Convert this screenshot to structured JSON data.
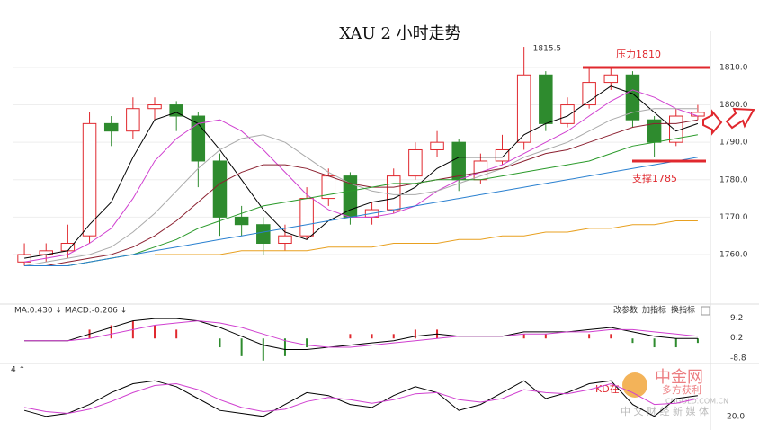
{
  "chart_data": {
    "type": "candlestick",
    "title": "XAU 2 小时走势",
    "ohlc": [
      [
        1758,
        1763,
        1757,
        1760
      ],
      [
        1760,
        1763,
        1758,
        1761
      ],
      [
        1761,
        1768,
        1759,
        1763
      ],
      [
        1765,
        1798,
        1763,
        1795
      ],
      [
        1795,
        1797,
        1789,
        1793
      ],
      [
        1793,
        1802,
        1791,
        1799
      ],
      [
        1799,
        1802,
        1796,
        1800
      ],
      [
        1800,
        1801,
        1793,
        1797
      ],
      [
        1797,
        1798,
        1778,
        1785
      ],
      [
        1785,
        1787,
        1765,
        1770
      ],
      [
        1770,
        1773,
        1765,
        1768
      ],
      [
        1768,
        1770,
        1760,
        1763
      ],
      [
        1763,
        1768,
        1761,
        1765
      ],
      [
        1765,
        1778,
        1764,
        1775
      ],
      [
        1775,
        1783,
        1773,
        1781
      ],
      [
        1781,
        1782,
        1768,
        1770
      ],
      [
        1770,
        1774,
        1768,
        1772
      ],
      [
        1772,
        1783,
        1771,
        1781
      ],
      [
        1781,
        1790,
        1780,
        1788
      ],
      [
        1788,
        1793,
        1786,
        1790
      ],
      [
        1790,
        1791,
        1777,
        1780
      ],
      [
        1780,
        1787,
        1779,
        1785
      ],
      [
        1785,
        1792,
        1784,
        1788
      ],
      [
        1790,
        1815.5,
        1788,
        1808
      ],
      [
        1808,
        1809,
        1793,
        1795
      ],
      [
        1795,
        1802,
        1794,
        1800
      ],
      [
        1800,
        1810,
        1799,
        1806
      ],
      [
        1806,
        1810,
        1804,
        1808
      ],
      [
        1808,
        1809,
        1794,
        1796
      ],
      [
        1796,
        1797,
        1786,
        1790
      ],
      [
        1790,
        1799,
        1789,
        1797
      ],
      [
        1797,
        1800,
        1796,
        1798
      ]
    ],
    "up_color": "#e0282e",
    "down_color": "#2e8b2e",
    "series": [
      {
        "color": "#000000",
        "values": [
          1759,
          1760,
          1761,
          1768,
          1774,
          1786,
          1796,
          1798,
          1795,
          1788,
          1780,
          1772,
          1766,
          1764,
          1769,
          1772,
          1774,
          1775,
          1778,
          1783,
          1786,
          1786,
          1786,
          1792,
          1795,
          1797,
          1801,
          1805,
          1803,
          1798,
          1793,
          1795
        ]
      },
      {
        "color": "#d040d0",
        "values": [
          1758,
          1759,
          1760,
          1763,
          1767,
          1775,
          1785,
          1791,
          1795,
          1796,
          1793,
          1788,
          1782,
          1776,
          1772,
          1770,
          1770,
          1771,
          1773,
          1777,
          1780,
          1782,
          1784,
          1787,
          1790,
          1793,
          1797,
          1801,
          1804,
          1802,
          1799,
          1797
        ]
      },
      {
        "color": "#aaaaaa",
        "values": [
          1757,
          1758,
          1759,
          1760,
          1762,
          1766,
          1771,
          1777,
          1783,
          1788,
          1791,
          1792,
          1790,
          1786,
          1782,
          1779,
          1777,
          1776,
          1776,
          1777,
          1779,
          1781,
          1783,
          1786,
          1788,
          1790,
          1793,
          1796,
          1798,
          1799,
          1799,
          1799
        ]
      },
      {
        "color": "#8b2030",
        "values": [
          1757,
          1757,
          1758,
          1759,
          1760,
          1762,
          1765,
          1769,
          1774,
          1779,
          1782,
          1784,
          1784,
          1783,
          1781,
          1779,
          1778,
          1778,
          1779,
          1780,
          1781,
          1782,
          1783,
          1785,
          1787,
          1788,
          1790,
          1792,
          1794,
          1795,
          1795,
          1796
        ]
      },
      {
        "color": "#2a9a2a",
        "values": [
          1757,
          1757,
          1757,
          1758,
          1759,
          1760,
          1762,
          1764,
          1767,
          1769,
          1771,
          1773,
          1774,
          1775,
          1776,
          1777,
          1778,
          1779,
          1779,
          1780,
          1780,
          1780,
          1781,
          1782,
          1783,
          1784,
          1785,
          1787,
          1789,
          1790,
          1791,
          1792
        ]
      },
      {
        "color": "#2a80d0",
        "values": [
          1757,
          1757,
          1757,
          1758,
          1759,
          1760,
          1761,
          1762,
          1763,
          1764,
          1765,
          1766,
          1767,
          1768,
          1769,
          1770,
          1771,
          1772,
          1773,
          1774,
          1775,
          1776,
          1777,
          1778,
          1779,
          1780,
          1781,
          1782,
          1783,
          1784,
          1785,
          1786
        ]
      },
      {
        "color": "#e8a020",
        "values": [
          null,
          null,
          null,
          null,
          null,
          null,
          1760,
          1760,
          1760,
          1760,
          1761,
          1761,
          1761,
          1761,
          1762,
          1762,
          1762,
          1763,
          1763,
          1763,
          1764,
          1764,
          1765,
          1765,
          1766,
          1766,
          1767,
          1767,
          1768,
          1768,
          1769,
          1769
        ]
      }
    ],
    "ylim": [
      1747.5,
      1819.6
    ],
    "yticks": [
      {
        "value": 1760,
        "label": "1760.0"
      },
      {
        "value": 1770,
        "label": "1770.0"
      },
      {
        "value": 1780,
        "label": "1780.0"
      },
      {
        "value": 1790,
        "label": "1790.0"
      },
      {
        "value": 1800,
        "label": "1800.0"
      },
      {
        "value": 1810,
        "label": "1810.0"
      }
    ],
    "resistance": {
      "label": "压力1810",
      "value": 1810
    },
    "support": {
      "label": "支撑1785",
      "value": 1785
    },
    "macd": {
      "header": "MA:0.430 ↓ MACD:-0.206 ↓",
      "buttons": [
        "改参数",
        "加指标",
        "换指标"
      ],
      "ylim": [
        -10.5,
        11.5
      ],
      "yticks": [
        9.2,
        0.2,
        -8.8
      ],
      "dif": [
        -1,
        -1,
        -1,
        2,
        5,
        8,
        9,
        9,
        8,
        5,
        1,
        -3,
        -5,
        -5,
        -4,
        -3,
        -2,
        -1,
        1,
        2,
        1,
        1,
        1,
        3,
        3,
        3,
        4,
        5,
        3,
        1,
        0,
        0
      ],
      "dea": [
        -1,
        -1,
        -1,
        0,
        2,
        4,
        6,
        7,
        8,
        7,
        5,
        2,
        -1,
        -3,
        -4,
        -4,
        -3,
        -2,
        -1,
        0,
        1,
        1,
        1,
        2,
        2,
        3,
        3,
        4,
        4,
        3,
        2,
        1
      ],
      "hist": [
        0,
        0,
        0,
        4,
        6,
        8,
        6,
        4,
        0,
        -4,
        -8,
        -10,
        -8,
        -4,
        0,
        2,
        2,
        2,
        4,
        4,
        0,
        0,
        0,
        2,
        2,
        0,
        2,
        2,
        -2,
        -4,
        -4,
        -2
      ]
    },
    "kd": {
      "header": "4 ↑",
      "note": "KD在",
      "ylim": [
        0,
        100
      ],
      "yticks": [
        {
          "value": 20,
          "label": "20.0"
        }
      ],
      "k": [
        30,
        20,
        25,
        40,
        60,
        75,
        80,
        70,
        50,
        30,
        25,
        20,
        40,
        60,
        55,
        40,
        35,
        55,
        70,
        60,
        30,
        40,
        60,
        80,
        50,
        60,
        75,
        80,
        40,
        20,
        50,
        55
      ],
      "d": [
        35,
        28,
        25,
        32,
        45,
        60,
        72,
        75,
        65,
        48,
        35,
        28,
        32,
        45,
        52,
        48,
        42,
        48,
        58,
        60,
        48,
        44,
        50,
        65,
        60,
        58,
        65,
        75,
        60,
        40,
        42,
        50
      ]
    },
    "watermark": [
      "中金网",
      "多方获利",
      "中 文 财 经 新 媒 体",
      "CNGOLD.COM.CN"
    ]
  }
}
